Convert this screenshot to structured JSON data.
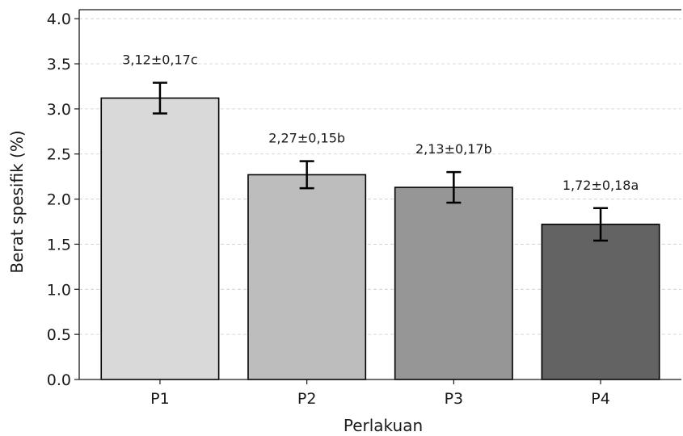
{
  "chart_data": {
    "type": "bar",
    "categories": [
      "P1",
      "P2",
      "P3",
      "P4"
    ],
    "values": [
      3.12,
      2.27,
      2.13,
      1.72
    ],
    "errors": [
      0.17,
      0.15,
      0.17,
      0.18
    ],
    "data_labels": [
      "3,12±0,17c",
      "2,27±0,15b",
      "2,13±0,17b",
      "1,72±0,18a"
    ],
    "bar_colors": [
      "#d9d9d9",
      "#bdbdbd",
      "#969696",
      "#636363"
    ],
    "xlabel": "Perlakuan",
    "ylabel": "Berat spesifik (%)",
    "ylim": [
      0,
      4.1
    ],
    "yticks": [
      0.0,
      0.5,
      1.0,
      1.5,
      2.0,
      2.5,
      3.0,
      3.5,
      4.0
    ],
    "ytick_labels": [
      "0.0",
      "0.5",
      "1.0",
      "1.5",
      "2.0",
      "2.5",
      "3.0",
      "3.5",
      "4.0"
    ],
    "grid": "y-dashed",
    "legend": "none"
  }
}
